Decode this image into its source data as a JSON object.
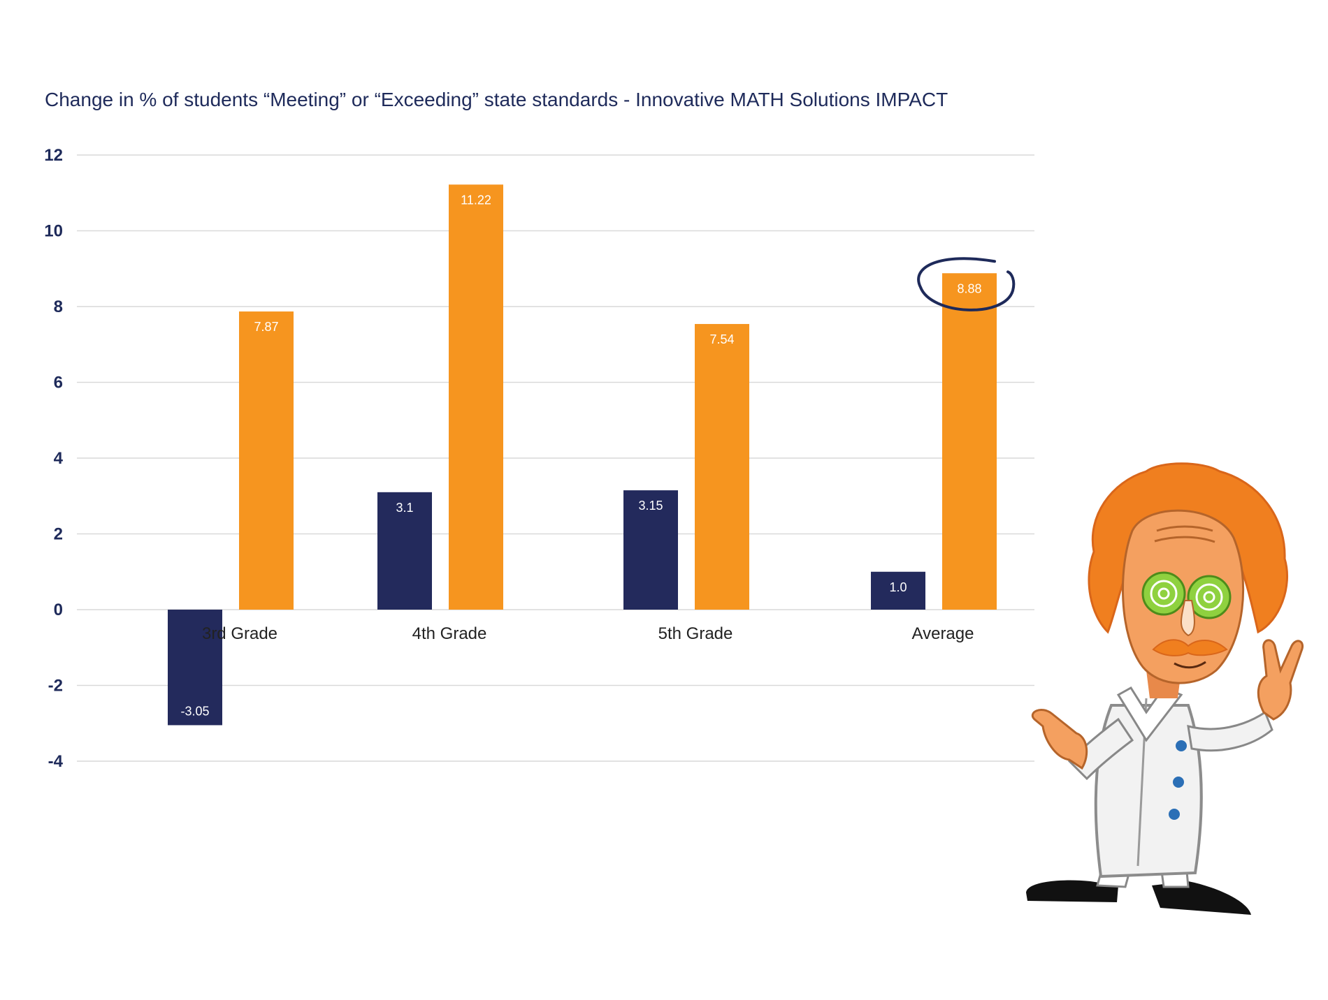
{
  "chart_data": {
    "type": "bar",
    "title": "Change in % of students “Meeting” or “Exceeding” state standards - Innovative MATH Solutions IMPACT",
    "categories": [
      "3rd Grade",
      "4th Grade",
      "5th Grade",
      "Average"
    ],
    "series": [
      {
        "values": [
          -3.05,
          3.1,
          3.15,
          1.0
        ],
        "labels": [
          "-3.05",
          "3.1",
          "3.15",
          "1.0"
        ],
        "color": "#232a5c"
      },
      {
        "values": [
          7.87,
          11.22,
          7.54,
          8.88
        ],
        "labels": [
          "7.87",
          "11.22",
          "7.54",
          "8.88"
        ],
        "color": "#f6951f"
      }
    ],
    "ylim": [
      -4,
      12
    ],
    "yticks": [
      12,
      10,
      8,
      6,
      4,
      2,
      0,
      -2,
      -4
    ],
    "ytick_labels": [
      "12",
      "10",
      "8",
      "6",
      "4",
      "2",
      "0",
      "-2",
      "-4"
    ],
    "grid": true,
    "legend": "none",
    "annotations": [
      {
        "type": "circle",
        "target": "Average / 8.88",
        "color": "#1e2a5a"
      }
    ]
  },
  "illustration": {
    "icon": "mad-scientist-mascot-icon",
    "hair_color": "#f07f1f",
    "coat_color": "#f2f2f2",
    "button_color": "#2b6fb6"
  }
}
